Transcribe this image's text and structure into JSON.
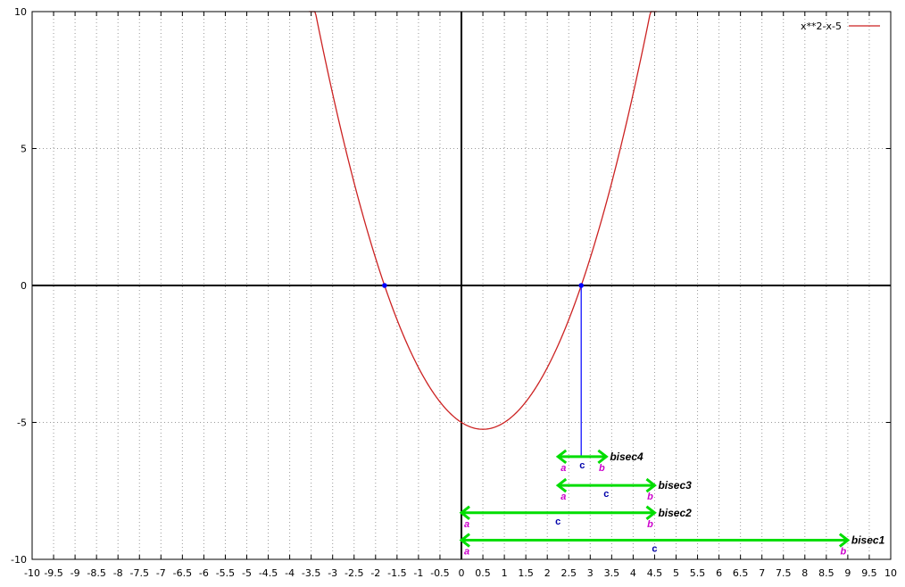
{
  "chart_data": {
    "type": "line",
    "xlim": [
      -10,
      10
    ],
    "ylim": [
      -10,
      10
    ],
    "x_ticks": [
      -10,
      -9.5,
      -9,
      -8.5,
      -8,
      -7.5,
      -7,
      -6.5,
      -6,
      -5.5,
      -5,
      -4.5,
      -4,
      -3.5,
      -3,
      -2.5,
      -2,
      -1.5,
      -1,
      -0.5,
      0,
      0.5,
      1,
      1.5,
      2,
      2.5,
      3,
      3.5,
      4,
      4.5,
      5,
      5.5,
      6,
      6.5,
      7,
      7.5,
      8,
      8.5,
      9,
      9.5,
      10
    ],
    "x_tick_labels": [
      "-10",
      "-9.5",
      "-9",
      "-8.5",
      "-8",
      "-7.5",
      "-7",
      "-6.5",
      "-6",
      "-5.5",
      "-5",
      "-4.5",
      "-4",
      "-3.5",
      "-3",
      "-2.5",
      "-2",
      "-1.5",
      "-1",
      "-0.5",
      "0",
      "0.5",
      "1",
      "1.5",
      "2",
      "2.5",
      "3",
      "3.5",
      "4",
      "4.5",
      "5",
      "5.5",
      "6",
      "6.5",
      "7",
      "7.5",
      "8",
      "8.5",
      "9",
      "9.5",
      "10"
    ],
    "y_ticks": [
      -10,
      -5,
      0,
      5,
      10
    ],
    "y_tick_labels": [
      "-10",
      "-5",
      "0",
      "5",
      "10"
    ],
    "grid": true,
    "legend_position": "top-right",
    "series": [
      {
        "name": "x**2-x-5",
        "color": "#cc2222",
        "function": "x**2-x-5",
        "x_range": [
          -3.55,
          4.55
        ]
      }
    ],
    "roots": [
      {
        "x": -1.79,
        "y": 0
      },
      {
        "x": 2.79,
        "y": 0
      }
    ],
    "root_drop_line": {
      "x": 2.79,
      "y_from": 0,
      "y_to": -6.25,
      "color": "#0000ff"
    },
    "bisection_steps": [
      {
        "label": "bisec1",
        "a": 0,
        "b": 9,
        "y": -9.3,
        "a_label": "a",
        "b_label": "b",
        "c_label": "c"
      },
      {
        "label": "bisec2",
        "a": 0,
        "b": 4.5,
        "y": -8.3,
        "a_label": "a",
        "b_label": "b",
        "c_label": "c"
      },
      {
        "label": "bisec3",
        "a": 2.25,
        "b": 4.5,
        "y": -7.3,
        "a_label": "a",
        "b_label": "b",
        "c_label": "c"
      },
      {
        "label": "bisec4",
        "a": 2.25,
        "b": 3.375,
        "y": -6.25,
        "a_label": "a",
        "b_label": "b",
        "c_label": "c"
      }
    ],
    "arrow_color": "#00dd00",
    "root_marker_color": "#0000ff"
  }
}
